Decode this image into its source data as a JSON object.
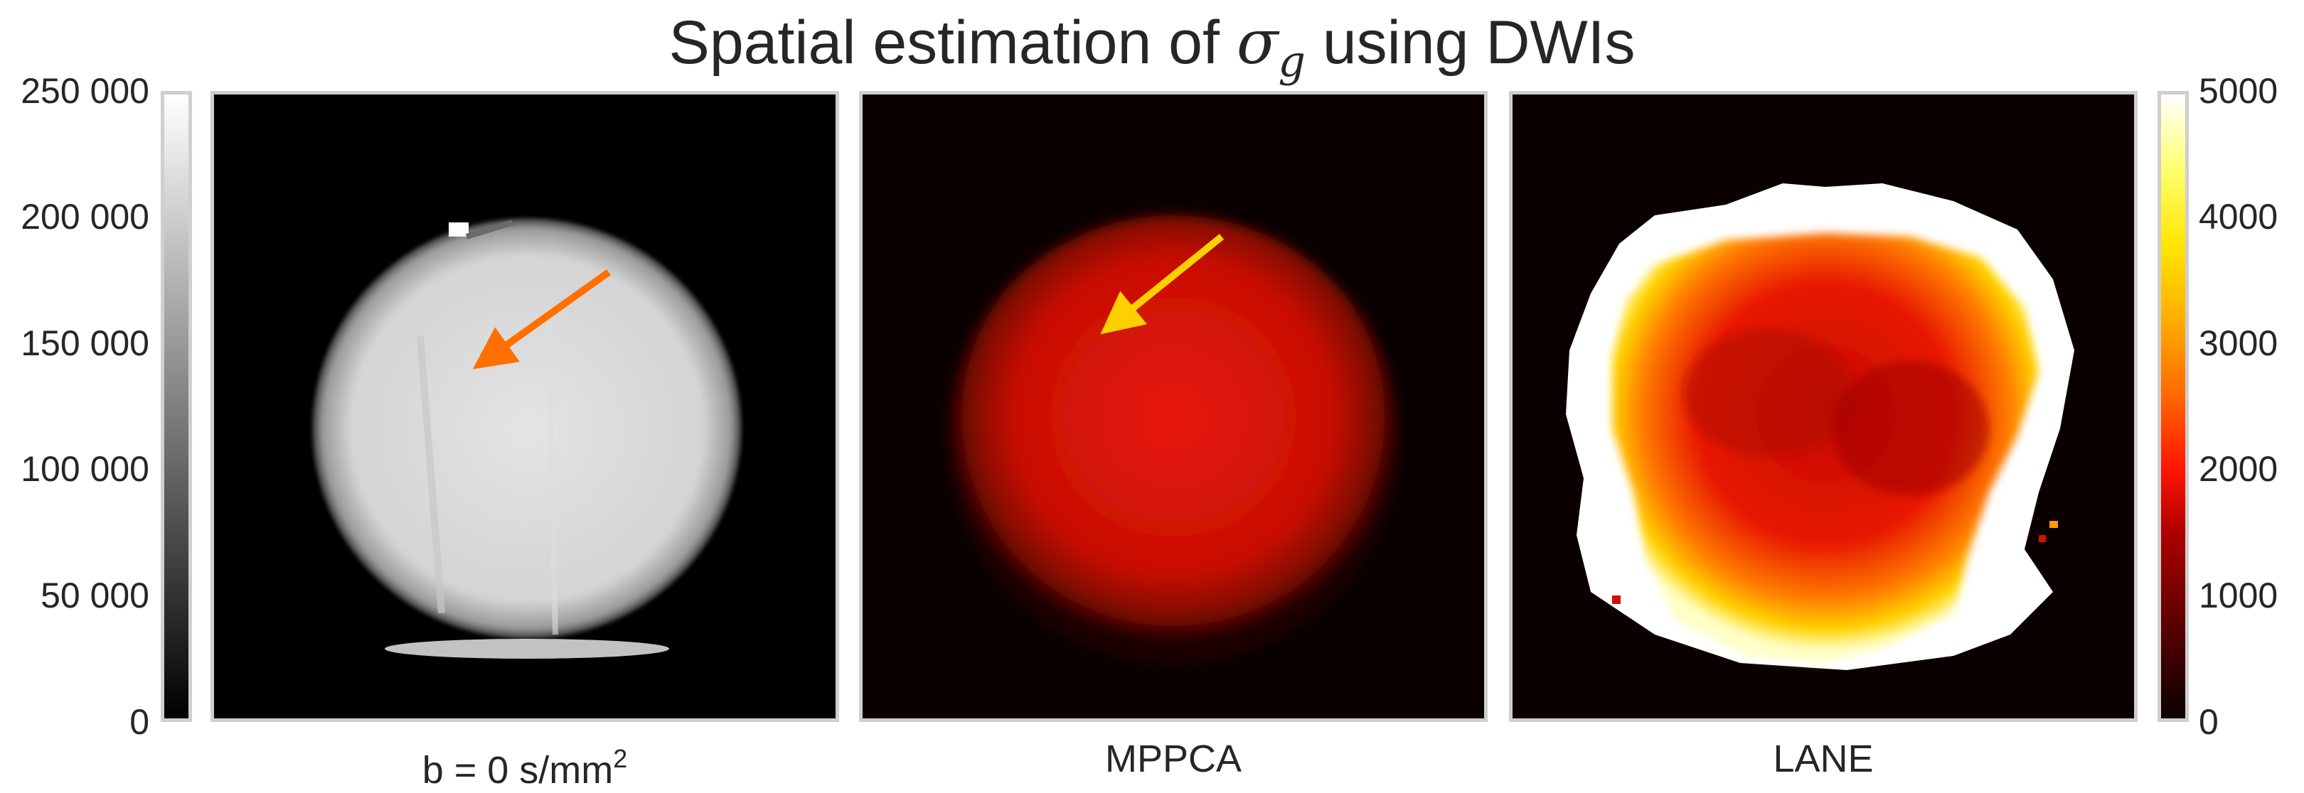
{
  "title": {
    "prefix": "Spatial estimation of ",
    "symbol": "σ",
    "subscript": "g",
    "suffix": " using DWIs"
  },
  "panels": [
    {
      "label_main": "b = 0 s/mm",
      "label_sup": "2",
      "colormap": "gray",
      "arrow_color": "#ff7000"
    },
    {
      "label_main": "MPPCA",
      "colormap": "hot",
      "arrow_color": "#ffd000"
    },
    {
      "label_main": "LANE",
      "colormap": "hot"
    }
  ],
  "colorbars": {
    "left": {
      "colormap": "gray",
      "range": [
        0,
        250000
      ],
      "ticks": [
        "250 000",
        "200 000",
        "150 000",
        "100 000",
        "50 000",
        "0"
      ]
    },
    "right": {
      "colormap": "hot",
      "range": [
        0,
        5000
      ],
      "ticks": [
        "5000",
        "4000",
        "3000",
        "2000",
        "1000",
        "0"
      ]
    }
  }
}
